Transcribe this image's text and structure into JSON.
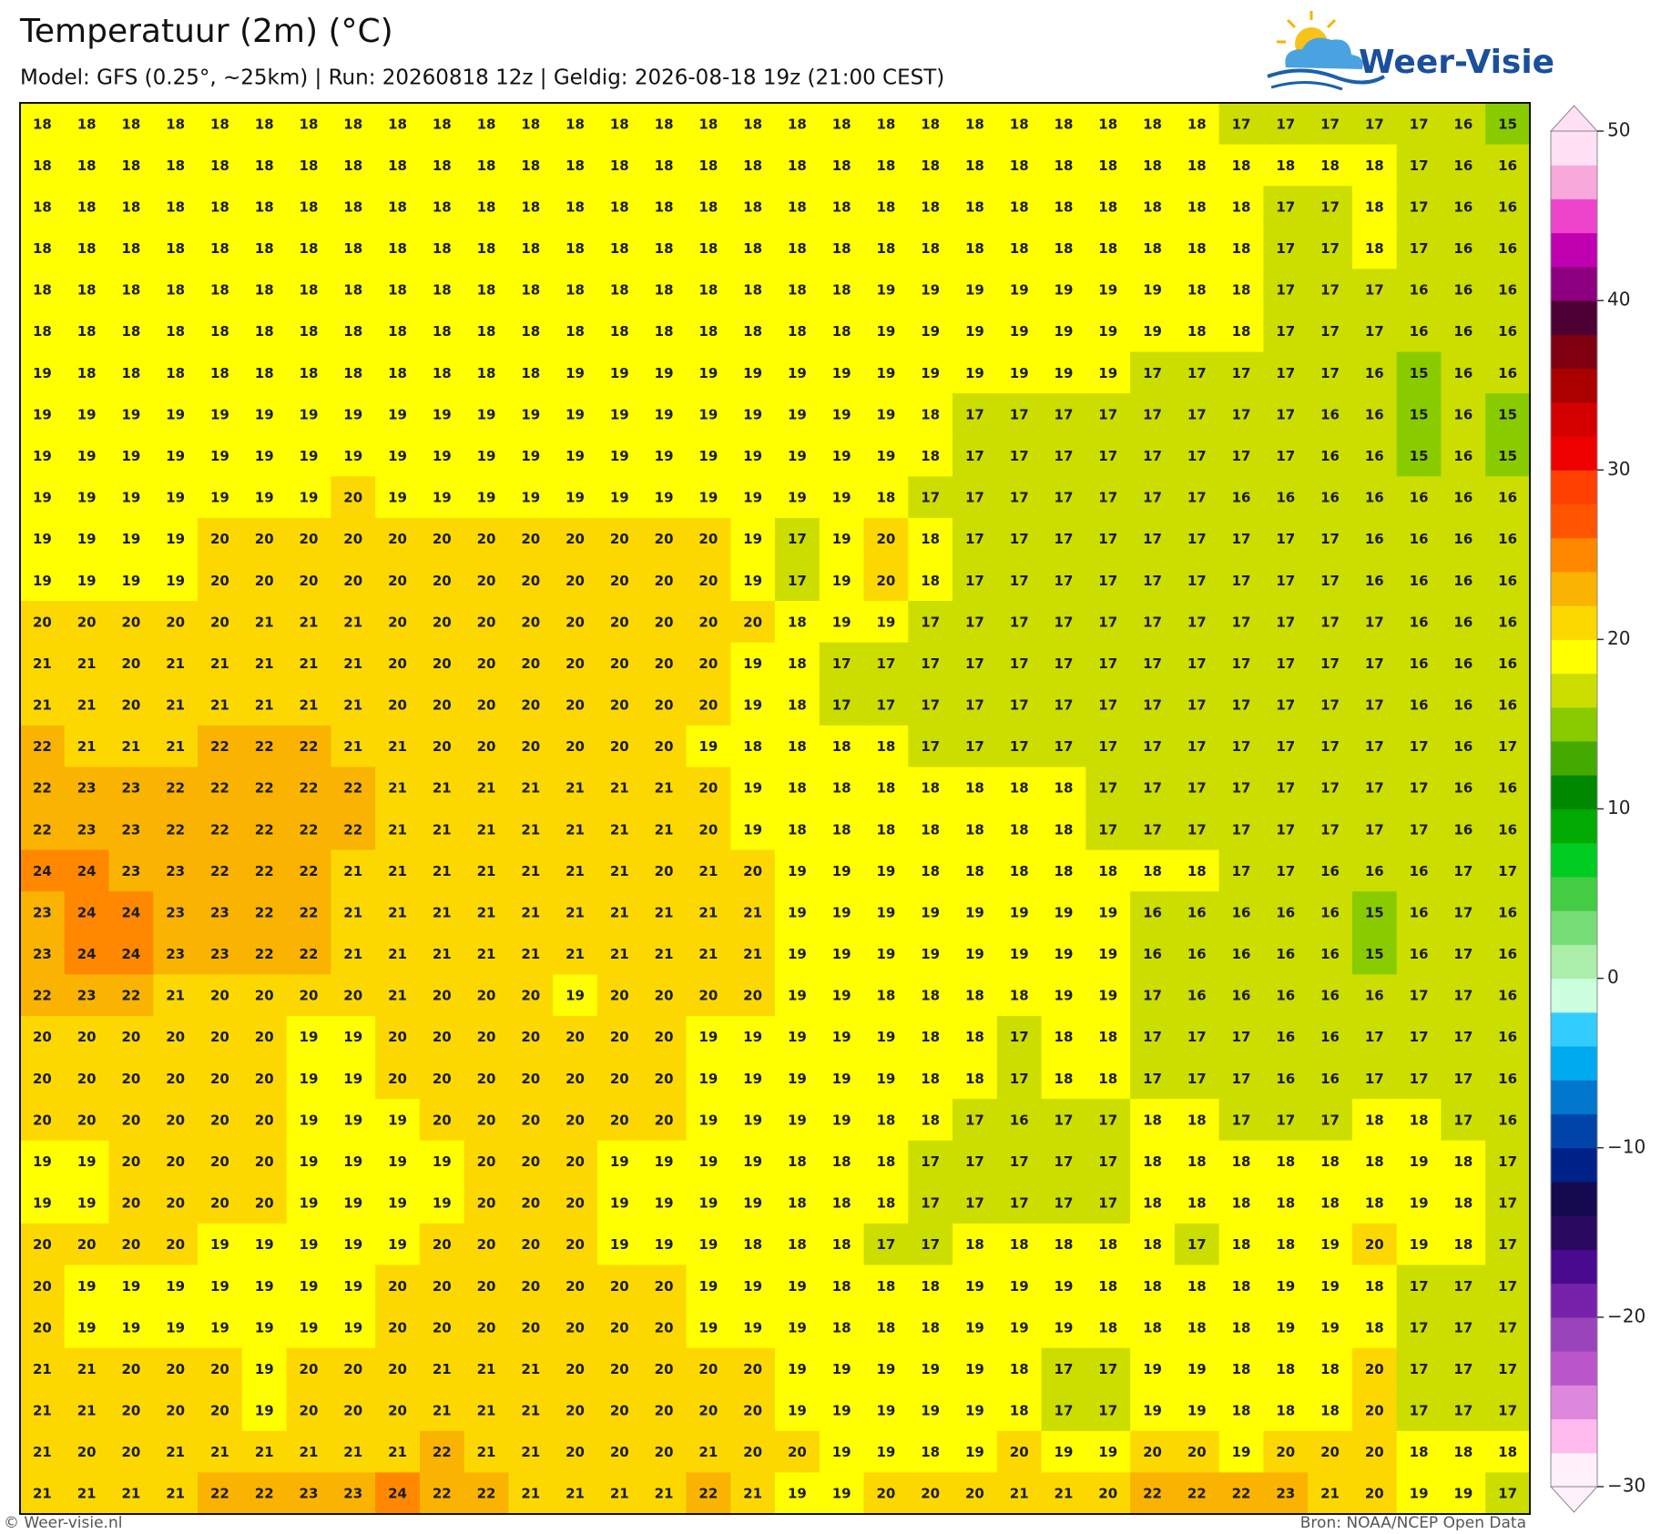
{
  "header": {
    "title": "Temperatuur (2m) (°C)",
    "subtitle": "Model: GFS (0.25°, ~25km)  |  Run: 20260818 12z  |  Geldig: 2026-08-18 19z (21:00 CEST)"
  },
  "logo": "Weer-Visie",
  "map": {
    "grid": [
      [
        18,
        18,
        18,
        18,
        18,
        18,
        18,
        18,
        18,
        18,
        18,
        18,
        18,
        18,
        18,
        18,
        18,
        18,
        18,
        18,
        18,
        18,
        18,
        18,
        18,
        18,
        18,
        17,
        17,
        17,
        17,
        17,
        16,
        15
      ],
      [
        18,
        18,
        18,
        18,
        18,
        18,
        18,
        18,
        18,
        18,
        18,
        18,
        18,
        18,
        18,
        18,
        18,
        18,
        18,
        18,
        18,
        18,
        18,
        18,
        18,
        18,
        18,
        18,
        18,
        18,
        18,
        17,
        16,
        16
      ],
      [
        18,
        18,
        18,
        18,
        18,
        18,
        18,
        18,
        18,
        18,
        18,
        18,
        18,
        18,
        18,
        18,
        18,
        18,
        18,
        18,
        18,
        18,
        18,
        18,
        18,
        18,
        18,
        18,
        17,
        17,
        18,
        17,
        16,
        16
      ],
      [
        18,
        18,
        18,
        18,
        18,
        18,
        18,
        18,
        18,
        18,
        18,
        18,
        18,
        18,
        18,
        18,
        18,
        18,
        18,
        18,
        18,
        18,
        18,
        18,
        18,
        18,
        18,
        18,
        17,
        17,
        18,
        17,
        16,
        16
      ],
      [
        18,
        18,
        18,
        18,
        18,
        18,
        18,
        18,
        18,
        18,
        18,
        18,
        18,
        18,
        18,
        18,
        18,
        18,
        18,
        19,
        19,
        19,
        19,
        19,
        19,
        19,
        18,
        18,
        17,
        17,
        17,
        16,
        16,
        16
      ],
      [
        18,
        18,
        18,
        18,
        18,
        18,
        18,
        18,
        18,
        18,
        18,
        18,
        18,
        18,
        18,
        18,
        18,
        18,
        18,
        19,
        19,
        19,
        19,
        19,
        19,
        19,
        18,
        18,
        17,
        17,
        17,
        16,
        16,
        16
      ],
      [
        19,
        18,
        18,
        18,
        18,
        18,
        18,
        18,
        18,
        18,
        18,
        18,
        19,
        19,
        19,
        19,
        19,
        19,
        19,
        19,
        19,
        19,
        19,
        19,
        19,
        17,
        17,
        17,
        17,
        17,
        16,
        15,
        16,
        16
      ],
      [
        19,
        19,
        19,
        19,
        19,
        19,
        19,
        19,
        19,
        19,
        19,
        19,
        19,
        19,
        19,
        19,
        19,
        19,
        19,
        19,
        18,
        17,
        17,
        17,
        17,
        17,
        17,
        17,
        17,
        16,
        16,
        15,
        16,
        15
      ],
      [
        19,
        19,
        19,
        19,
        19,
        19,
        19,
        19,
        19,
        19,
        19,
        19,
        19,
        19,
        19,
        19,
        19,
        19,
        19,
        19,
        18,
        17,
        17,
        17,
        17,
        17,
        17,
        17,
        17,
        16,
        16,
        15,
        16,
        15
      ],
      [
        19,
        19,
        19,
        19,
        19,
        19,
        19,
        20,
        19,
        19,
        19,
        19,
        19,
        19,
        19,
        19,
        19,
        19,
        19,
        18,
        17,
        17,
        17,
        17,
        17,
        17,
        17,
        16,
        16,
        16,
        16,
        16,
        16,
        16
      ],
      [
        19,
        19,
        19,
        19,
        20,
        20,
        20,
        20,
        20,
        20,
        20,
        20,
        20,
        20,
        20,
        20,
        19,
        17,
        19,
        20,
        18,
        17,
        17,
        17,
        17,
        17,
        17,
        17,
        17,
        17,
        16,
        16,
        16,
        16
      ],
      [
        19,
        19,
        19,
        19,
        20,
        20,
        20,
        20,
        20,
        20,
        20,
        20,
        20,
        20,
        20,
        20,
        19,
        17,
        19,
        20,
        18,
        17,
        17,
        17,
        17,
        17,
        17,
        17,
        17,
        17,
        16,
        16,
        16,
        16
      ],
      [
        20,
        20,
        20,
        20,
        20,
        21,
        21,
        21,
        20,
        20,
        20,
        20,
        20,
        20,
        20,
        20,
        20,
        18,
        19,
        19,
        17,
        17,
        17,
        17,
        17,
        17,
        17,
        17,
        17,
        17,
        17,
        16,
        16,
        16
      ],
      [
        21,
        21,
        20,
        21,
        21,
        21,
        21,
        21,
        20,
        20,
        20,
        20,
        20,
        20,
        20,
        20,
        19,
        18,
        17,
        17,
        17,
        17,
        17,
        17,
        17,
        17,
        17,
        17,
        17,
        17,
        17,
        16,
        16,
        16
      ],
      [
        21,
        21,
        20,
        21,
        21,
        21,
        21,
        21,
        20,
        20,
        20,
        20,
        20,
        20,
        20,
        20,
        19,
        18,
        17,
        17,
        17,
        17,
        17,
        17,
        17,
        17,
        17,
        17,
        17,
        17,
        17,
        16,
        16,
        16
      ],
      [
        22,
        21,
        21,
        21,
        22,
        22,
        22,
        21,
        21,
        20,
        20,
        20,
        20,
        20,
        20,
        19,
        18,
        18,
        18,
        18,
        17,
        17,
        17,
        17,
        17,
        17,
        17,
        17,
        17,
        17,
        17,
        17,
        16,
        17
      ],
      [
        22,
        23,
        23,
        22,
        22,
        22,
        22,
        22,
        21,
        21,
        21,
        21,
        21,
        21,
        21,
        20,
        19,
        18,
        18,
        18,
        18,
        18,
        18,
        18,
        17,
        17,
        17,
        17,
        17,
        17,
        17,
        17,
        16,
        16
      ],
      [
        22,
        23,
        23,
        22,
        22,
        22,
        22,
        22,
        21,
        21,
        21,
        21,
        21,
        21,
        21,
        20,
        19,
        18,
        18,
        18,
        18,
        18,
        18,
        18,
        17,
        17,
        17,
        17,
        17,
        17,
        17,
        17,
        16,
        16
      ],
      [
        24,
        24,
        23,
        23,
        22,
        22,
        22,
        21,
        21,
        21,
        21,
        21,
        21,
        21,
        20,
        21,
        20,
        19,
        19,
        19,
        18,
        18,
        18,
        18,
        18,
        18,
        18,
        17,
        17,
        16,
        16,
        16,
        17,
        17
      ],
      [
        23,
        24,
        24,
        23,
        23,
        22,
        22,
        21,
        21,
        21,
        21,
        21,
        21,
        21,
        21,
        21,
        21,
        19,
        19,
        19,
        19,
        19,
        19,
        19,
        19,
        16,
        16,
        16,
        16,
        16,
        15,
        16,
        17,
        16
      ],
      [
        23,
        24,
        24,
        23,
        23,
        22,
        22,
        21,
        21,
        21,
        21,
        21,
        21,
        21,
        21,
        21,
        21,
        19,
        19,
        19,
        19,
        19,
        19,
        19,
        19,
        16,
        16,
        16,
        16,
        16,
        15,
        16,
        17,
        16
      ],
      [
        22,
        23,
        22,
        21,
        20,
        20,
        20,
        20,
        21,
        20,
        20,
        20,
        19,
        20,
        20,
        20,
        20,
        19,
        19,
        18,
        18,
        18,
        18,
        19,
        19,
        17,
        16,
        16,
        16,
        16,
        16,
        17,
        17,
        16
      ],
      [
        20,
        20,
        20,
        20,
        20,
        20,
        19,
        19,
        20,
        20,
        20,
        20,
        20,
        20,
        20,
        19,
        19,
        19,
        19,
        19,
        18,
        18,
        17,
        18,
        18,
        17,
        17,
        17,
        16,
        16,
        17,
        17,
        17,
        16
      ],
      [
        20,
        20,
        20,
        20,
        20,
        20,
        19,
        19,
        20,
        20,
        20,
        20,
        20,
        20,
        20,
        19,
        19,
        19,
        19,
        19,
        18,
        18,
        17,
        18,
        18,
        17,
        17,
        17,
        16,
        16,
        17,
        17,
        17,
        16
      ],
      [
        20,
        20,
        20,
        20,
        20,
        20,
        19,
        19,
        19,
        20,
        20,
        20,
        20,
        20,
        20,
        19,
        19,
        19,
        19,
        18,
        18,
        17,
        16,
        17,
        17,
        18,
        18,
        17,
        17,
        17,
        18,
        18,
        17,
        16
      ],
      [
        19,
        19,
        20,
        20,
        20,
        20,
        19,
        19,
        19,
        19,
        20,
        20,
        20,
        19,
        19,
        19,
        19,
        18,
        18,
        18,
        17,
        17,
        17,
        17,
        17,
        18,
        18,
        18,
        18,
        18,
        18,
        19,
        18,
        17
      ],
      [
        19,
        19,
        20,
        20,
        20,
        20,
        19,
        19,
        19,
        19,
        20,
        20,
        20,
        19,
        19,
        19,
        19,
        18,
        18,
        18,
        17,
        17,
        17,
        17,
        17,
        18,
        18,
        18,
        18,
        18,
        18,
        19,
        18,
        17
      ],
      [
        20,
        20,
        20,
        20,
        19,
        19,
        19,
        19,
        19,
        20,
        20,
        20,
        20,
        19,
        19,
        19,
        18,
        18,
        18,
        17,
        17,
        18,
        18,
        18,
        18,
        18,
        17,
        18,
        18,
        19,
        20,
        19,
        18,
        17
      ],
      [
        20,
        19,
        19,
        19,
        19,
        19,
        19,
        19,
        20,
        20,
        20,
        20,
        20,
        20,
        20,
        19,
        19,
        19,
        18,
        18,
        18,
        19,
        19,
        19,
        18,
        18,
        18,
        18,
        19,
        19,
        18,
        17,
        17,
        17
      ],
      [
        20,
        19,
        19,
        19,
        19,
        19,
        19,
        19,
        20,
        20,
        20,
        20,
        20,
        20,
        20,
        19,
        19,
        19,
        18,
        18,
        18,
        19,
        19,
        19,
        18,
        18,
        18,
        18,
        19,
        19,
        18,
        17,
        17,
        17
      ],
      [
        21,
        21,
        20,
        20,
        20,
        19,
        20,
        20,
        20,
        21,
        21,
        21,
        20,
        20,
        20,
        20,
        20,
        19,
        19,
        19,
        19,
        19,
        18,
        17,
        17,
        19,
        19,
        18,
        18,
        18,
        20,
        17,
        17,
        17
      ],
      [
        21,
        21,
        20,
        20,
        20,
        19,
        20,
        20,
        20,
        21,
        21,
        21,
        20,
        20,
        20,
        20,
        20,
        19,
        19,
        19,
        19,
        19,
        18,
        17,
        17,
        19,
        19,
        18,
        18,
        18,
        20,
        17,
        17,
        17
      ],
      [
        21,
        20,
        20,
        21,
        21,
        21,
        21,
        21,
        21,
        22,
        21,
        21,
        20,
        20,
        20,
        21,
        20,
        20,
        19,
        19,
        18,
        19,
        20,
        19,
        19,
        20,
        20,
        19,
        20,
        20,
        20,
        18,
        18,
        18
      ],
      [
        21,
        21,
        21,
        21,
        22,
        22,
        23,
        23,
        24,
        22,
        22,
        21,
        21,
        21,
        21,
        22,
        21,
        19,
        19,
        20,
        20,
        20,
        21,
        21,
        20,
        22,
        22,
        22,
        23,
        21,
        20,
        19,
        19,
        17
      ]
    ]
  },
  "colorbar": {
    "lim": [
      -30,
      50
    ],
    "ticks": [
      50,
      40,
      30,
      20,
      10,
      0,
      {
        "value": -10,
        "label": "−10"
      },
      {
        "value": -20,
        "label": "−20"
      },
      {
        "value": -30,
        "label": "−30"
      }
    ],
    "colors": [
      "#fff0fc",
      "#ffbbee",
      "#dd88dd",
      "#bb55cc",
      "#9944bb",
      "#7722aa",
      "#4a0a90",
      "#2a0a60",
      "#150a50",
      "#002288",
      "#0044aa",
      "#0077cc",
      "#00aaee",
      "#33ccff",
      "#ccffdd",
      "#aaeeaa",
      "#77dd77",
      "#44cc44",
      "#00cc22",
      "#00aa00",
      "#008800",
      "#44aa00",
      "#88cc00",
      "#ccdd00",
      "#ffff00",
      "#fdd800",
      "#f9b300",
      "#ff8800",
      "#ff5500",
      "#ff4000",
      "#ee0000",
      "#d40000",
      "#aa0000",
      "#800010",
      "#4d0033",
      "#8c0080",
      "#c000b0",
      "#ee44cc",
      "#f9a8dc",
      "#ffe0f5"
    ]
  },
  "footer": {
    "left": "© Weer-visie.nl",
    "right": "Bron: NOAA/NCEP Open Data"
  }
}
